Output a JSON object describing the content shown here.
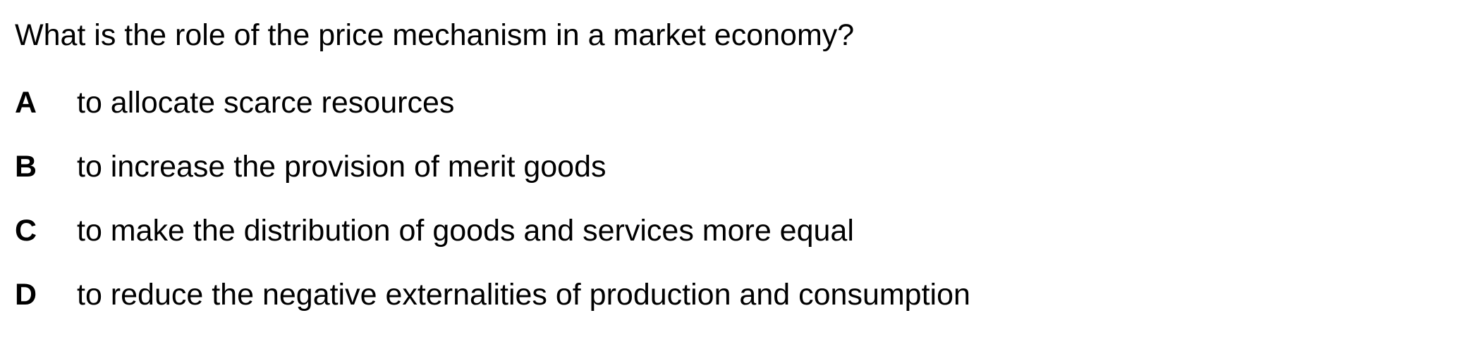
{
  "question": {
    "text": "What is the role of the price mechanism in a market economy?"
  },
  "options": [
    {
      "letter": "A",
      "text": "to allocate scarce resources"
    },
    {
      "letter": "B",
      "text": "to increase the provision of merit goods"
    },
    {
      "letter": "C",
      "text": "to make the distribution of goods and services more equal"
    },
    {
      "letter": "D",
      "text": "to reduce the negative externalities of production and consumption"
    }
  ]
}
